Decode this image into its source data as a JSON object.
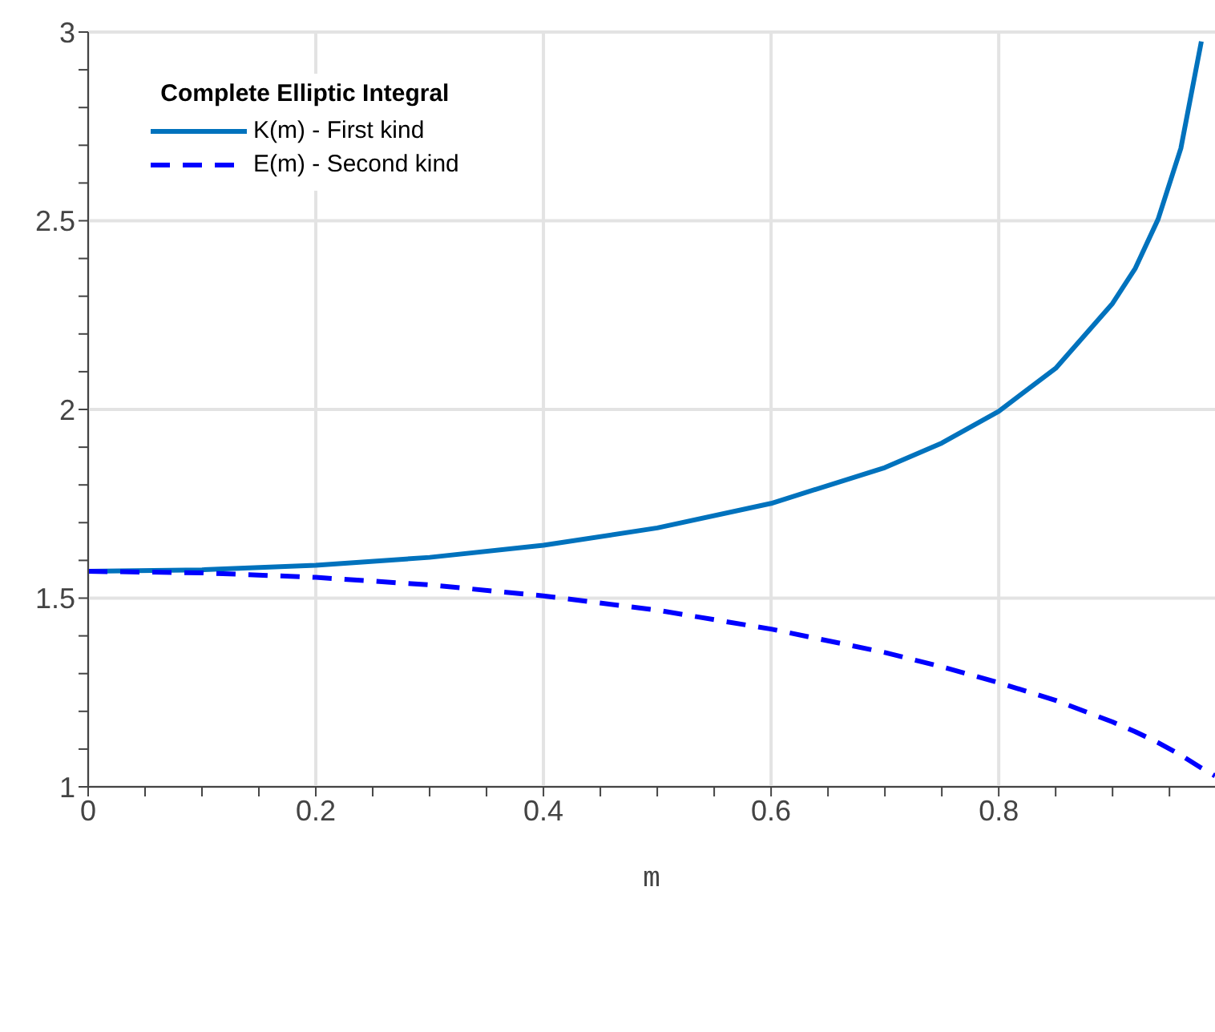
{
  "chart_data": {
    "type": "line",
    "xlabel": "m",
    "legend_title": "Complete Elliptic Integral",
    "legend": "top left",
    "grid": true,
    "marker": "none",
    "x": [
      0,
      0.1,
      0.2,
      0.3,
      0.4,
      0.5,
      0.6,
      0.7,
      0.75,
      0.8,
      0.85,
      0.9,
      0.92,
      0.94,
      0.96,
      0.978,
      0.99
    ],
    "series": [
      {
        "name": "K(m) - First kind",
        "color": "#0072bd",
        "line_style": "solid",
        "values": [
          1.571,
          1.575,
          1.587,
          1.608,
          1.64,
          1.686,
          1.751,
          1.846,
          1.911,
          1.995,
          2.109,
          2.281,
          2.374,
          2.504,
          2.692,
          2.975,
          null
        ]
      },
      {
        "name": "E(m) - Second kind",
        "color": "#0000ff",
        "line_style": "dashed",
        "values": [
          1.571,
          1.567,
          1.555,
          1.535,
          1.506,
          1.468,
          1.418,
          1.356,
          1.318,
          1.276,
          1.229,
          1.172,
          1.146,
          1.117,
          1.084,
          1.05,
          1.029
        ]
      }
    ],
    "xlim": [
      0,
      0.99
    ],
    "xticks": [
      0,
      {
        "value": 0.05,
        "label": null
      },
      {
        "value": 0.1,
        "label": null
      },
      {
        "value": 0.15,
        "label": null
      },
      0.2,
      {
        "value": 0.25,
        "label": null
      },
      {
        "value": 0.3,
        "label": null
      },
      {
        "value": 0.35,
        "label": null
      },
      0.4,
      {
        "value": 0.45,
        "label": null
      },
      {
        "value": 0.5,
        "label": null
      },
      {
        "value": 0.55,
        "label": null
      },
      0.6,
      {
        "value": 0.65,
        "label": null
      },
      {
        "value": 0.7,
        "label": null
      },
      {
        "value": 0.75,
        "label": null
      },
      0.8,
      {
        "value": 0.85,
        "label": null
      },
      {
        "value": 0.9,
        "label": null
      },
      {
        "value": 0.95,
        "label": null
      }
    ],
    "ylim": [
      1,
      3
    ],
    "yticks": [
      1,
      {
        "value": 1.1,
        "label": null
      },
      {
        "value": 1.2,
        "label": null
      },
      {
        "value": 1.3,
        "label": null
      },
      {
        "value": 1.4,
        "label": null
      },
      1.5,
      {
        "value": 1.6,
        "label": null
      },
      {
        "value": 1.7,
        "label": null
      },
      {
        "value": 1.8,
        "label": null
      },
      {
        "value": 1.9,
        "label": null
      },
      2,
      {
        "value": 2.1,
        "label": null
      },
      {
        "value": 2.2,
        "label": null
      },
      {
        "value": 2.3,
        "label": null
      },
      {
        "value": 2.4,
        "label": null
      },
      2.5,
      {
        "value": 2.6,
        "label": null
      },
      {
        "value": 2.7,
        "label": null
      },
      {
        "value": 2.8,
        "label": null
      },
      {
        "value": 2.9,
        "label": null
      },
      3
    ]
  }
}
